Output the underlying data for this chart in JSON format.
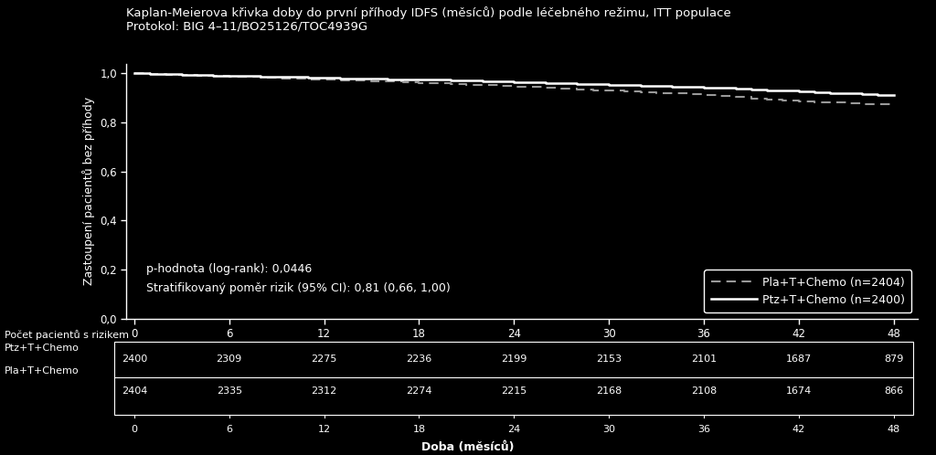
{
  "title_line1": "Kaplan-Meierova křivka doby do první příhody IDFS (měsíců) podle léčebného režimu, ITT populace",
  "title_line2": "Protokol: BIG 4–11/BO25126/TOC4939G",
  "ylabel": "Zastoupení pacientů bez příhody",
  "xlabel": "Doba (měsíců)",
  "background_color": "#000000",
  "text_color": "#ffffff",
  "ylim": [
    0.0,
    1.04
  ],
  "xlim": [
    -0.5,
    49.5
  ],
  "yticks": [
    0.0,
    0.2,
    0.4,
    0.6,
    0.8,
    1.0
  ],
  "xticks": [
    0,
    6,
    12,
    18,
    24,
    30,
    36,
    42,
    48
  ],
  "ptz_x": [
    0,
    1,
    2,
    3,
    4,
    5,
    6,
    7,
    8,
    9,
    10,
    11,
    12,
    13,
    14,
    15,
    16,
    17,
    18,
    19,
    20,
    21,
    22,
    23,
    24,
    25,
    26,
    27,
    28,
    29,
    30,
    31,
    32,
    33,
    34,
    35,
    36,
    37,
    38,
    39,
    40,
    41,
    42,
    43,
    44,
    45,
    46,
    47,
    48
  ],
  "ptz_y": [
    1.0,
    0.998,
    0.997,
    0.995,
    0.994,
    0.992,
    0.991,
    0.989,
    0.988,
    0.986,
    0.985,
    0.983,
    0.982,
    0.98,
    0.979,
    0.978,
    0.977,
    0.976,
    0.975,
    0.974,
    0.972,
    0.971,
    0.969,
    0.967,
    0.965,
    0.963,
    0.961,
    0.959,
    0.957,
    0.956,
    0.954,
    0.952,
    0.951,
    0.949,
    0.947,
    0.945,
    0.943,
    0.941,
    0.938,
    0.935,
    0.932,
    0.929,
    0.926,
    0.923,
    0.92,
    0.918,
    0.916,
    0.914,
    0.912
  ],
  "pla_x": [
    0,
    1,
    2,
    3,
    4,
    5,
    6,
    7,
    8,
    9,
    10,
    11,
    12,
    13,
    14,
    15,
    16,
    17,
    18,
    19,
    20,
    21,
    22,
    23,
    24,
    25,
    26,
    27,
    28,
    29,
    30,
    31,
    32,
    33,
    34,
    35,
    36,
    37,
    38,
    39,
    40,
    41,
    42,
    43,
    44,
    45,
    46,
    47,
    48
  ],
  "pla_y": [
    1.0,
    0.997,
    0.995,
    0.993,
    0.991,
    0.989,
    0.987,
    0.985,
    0.983,
    0.981,
    0.979,
    0.977,
    0.975,
    0.973,
    0.971,
    0.969,
    0.967,
    0.964,
    0.961,
    0.959,
    0.957,
    0.955,
    0.952,
    0.95,
    0.947,
    0.944,
    0.941,
    0.938,
    0.935,
    0.932,
    0.93,
    0.927,
    0.924,
    0.921,
    0.918,
    0.915,
    0.911,
    0.907,
    0.903,
    0.899,
    0.895,
    0.891,
    0.887,
    0.884,
    0.881,
    0.878,
    0.876,
    0.874,
    0.872
  ],
  "ptz_color": "#ffffff",
  "pla_color": "#999999",
  "pla_label": "Pla+T+Chemo (n=2404)",
  "ptz_label": "Ptz+T+Chemo (n=2400)",
  "annotation_line1": "p-hodnota (log-rank): 0,0446",
  "annotation_line2": "Stratifikovaný poměr rizik (95% CI): 0,81 (0,66, 1,00)",
  "risk_header": "Počet pacientů s rizikem",
  "risk_ptz_label": "Ptz+T+Chemo",
  "risk_pla_label": "Pla+T+Chemo",
  "risk_ptz_values": [
    2400,
    2309,
    2275,
    2236,
    2199,
    2153,
    2101,
    1687,
    879
  ],
  "risk_pla_values": [
    2404,
    2335,
    2312,
    2274,
    2215,
    2168,
    2108,
    1674,
    866
  ],
  "risk_times": [
    0,
    6,
    12,
    18,
    24,
    30,
    36,
    42,
    48
  ],
  "title_fontsize": 9.5,
  "axis_fontsize": 9.0,
  "tick_fontsize": 8.5,
  "legend_fontsize": 9.0,
  "annotation_fontsize": 9.0,
  "risk_fontsize": 8.0
}
